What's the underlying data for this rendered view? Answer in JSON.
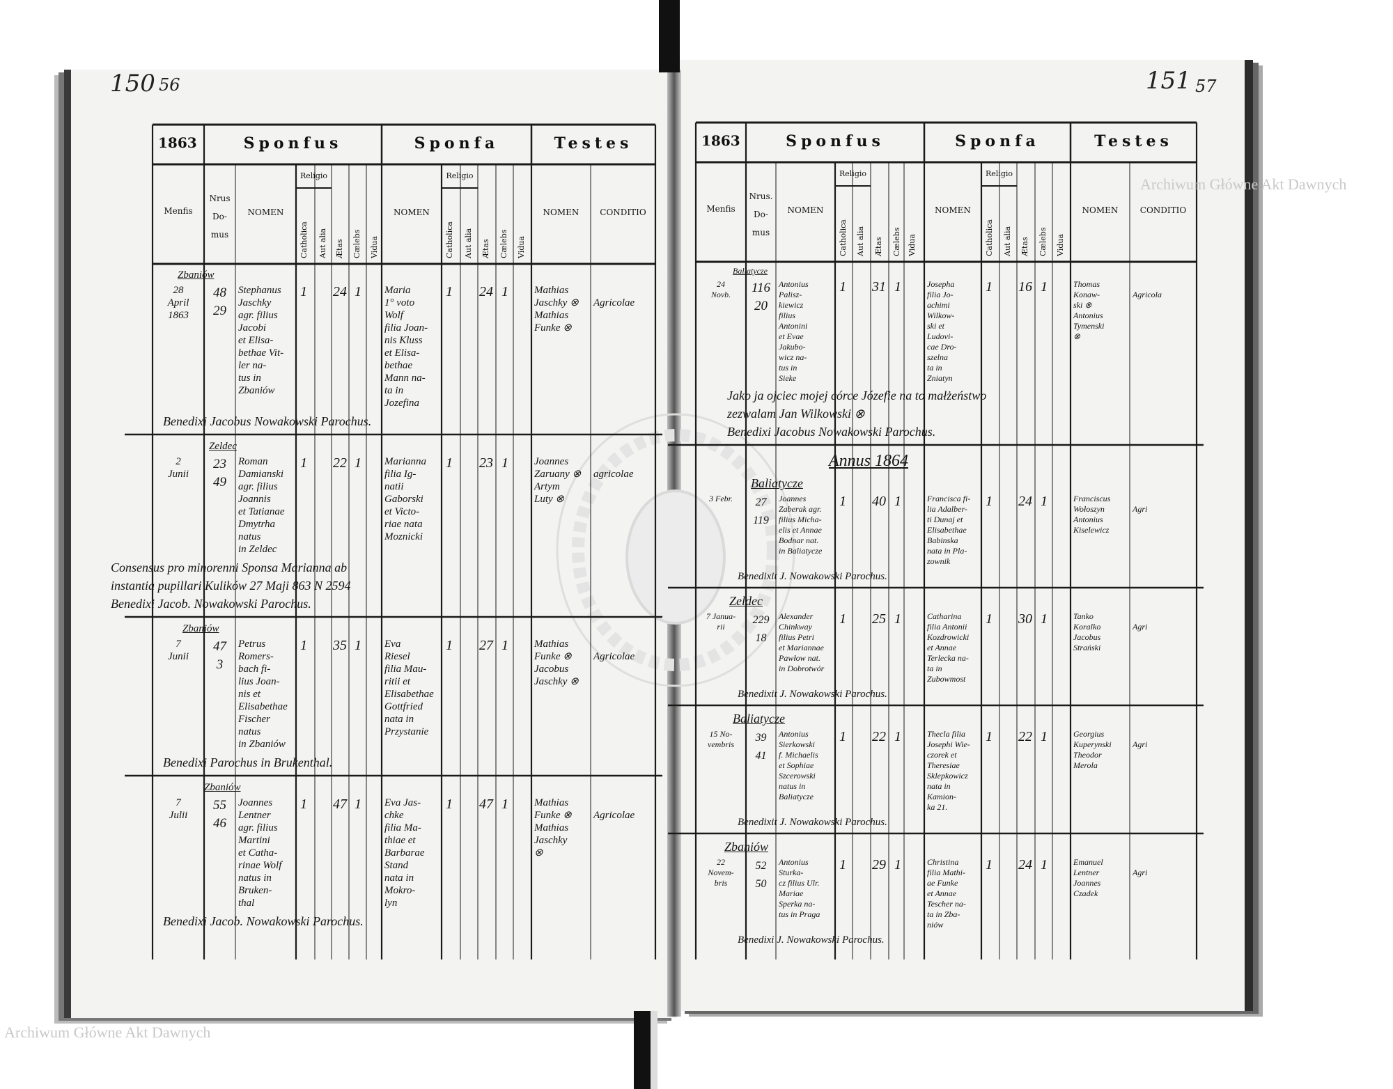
{
  "watermark": "Archiwum Główne Akt Dawnych",
  "stamp_text": "ARCHIWUM GŁÓWNE AKT DAWNYCH",
  "left_page": {
    "page_number": "150",
    "page_number_alt": "56",
    "header": {
      "year": "1863",
      "sponsus": "Sponfus",
      "sponsa": "Sponfa",
      "testes": "Testes",
      "mensis": "Menfis",
      "nrus_domus": "Nrus\nDo-\nmus",
      "nomen": "NOMEN",
      "religio": "Religio",
      "catholica": "Catholica",
      "aut_alia": "Aut alia",
      "aetas": "Ætas",
      "caelebs": "Cælebs",
      "vidua": "Vidua",
      "conditio": "CONDITIO"
    },
    "entries": [
      {
        "village": "Zbaniów",
        "date": "28\nApril\n1863",
        "domus": "48\n29",
        "sponsus": "Stephanus\nJaschky\nagr. filius\nJacobi\net Elisa-\nbethae Vit-\nler na-\ntus in\nZbaniów",
        "sponsus_religio": "1",
        "sponsus_aetas": "24",
        "sponsus_status": "1",
        "sponsa": "Maria\n1° voto\nWolf\nfilia Joan-\nnis Kluss\net Elisa-\nbethae\nMann na-\nta in\nJozefina",
        "sponsa_religio": "1",
        "sponsa_aetas": "24",
        "sponsa_status": "1",
        "testes": "Mathias\nJaschky ⊗\nMathias\nFunke ⊗",
        "conditio": "Agricolae",
        "signature": "Benedixi Jacobus Nowakowski Parochus."
      },
      {
        "village": "Zeldec",
        "date": "2\nJunii",
        "domus": "23\n49",
        "sponsus": "Roman\nDamianski\nagr. filius\nJoannis\net Tatianae\nDmytrha\nnatus\nin Zeldec",
        "sponsus_religio": "1",
        "sponsus_aetas": "22",
        "sponsus_status": "1",
        "sponsa": "Marianna\nfilia Ig-\nnatii\nGaborski\net Victo-\nriae nata\nMoznicki",
        "sponsa_religio": "1",
        "sponsa_aetas": "23",
        "sponsa_status": "1",
        "testes": "Joannes\nZaruany ⊗\nArtym\nLuty ⊗",
        "conditio": "agricolae",
        "signature": "Consensus pro minorenni Sponsa Marianna ab\ninstantia pupillari Kulików 27 Maji 863 N 2594\nBenedixi Jacob. Nowakowski Parochus."
      },
      {
        "village": "Zbaniów",
        "date": "7\nJunii",
        "domus": "47\n3",
        "sponsus": "Petrus\nRomers-\nbach fi-\nlius Joan-\nnis et\nElisabethae\nFischer\nnatus\nin Zbaniów",
        "sponsus_religio": "1",
        "sponsus_aetas": "35",
        "sponsus_status": "1",
        "sponsa": "Eva\nRiesel\nfilia Mau-\nritii et\nElisabethae\nGottfried\nnata in\nPrzystanie",
        "sponsa_religio": "1",
        "sponsa_aetas": "27",
        "sponsa_status": "1",
        "testes": "Mathias\nFunke ⊗\nJacobus\nJaschky ⊗",
        "conditio": "Agricolae",
        "signature": "Benedixi Parochus in Brukenthal."
      },
      {
        "village": "Zbaniów",
        "date": "7\nJulii",
        "domus": "55\n46",
        "sponsus": "Joannes\nLentner\nagr. filius\nMartini\net Catha-\nrinae Wolf\nnatus in\nBruken-\nthal",
        "sponsus_religio": "1",
        "sponsus_aetas": "47",
        "sponsus_status": "1",
        "sponsa": "Eva Jas-\nchke\nfilia Ma-\nthiae et\nBarbarae\nStand\nnata in\nMokro-\nlyn",
        "sponsa_religio": "1",
        "sponsa_aetas": "47",
        "sponsa_status": "1",
        "testes": "Mathias\nFunke ⊗\nMathias\nJaschky\n⊗",
        "conditio": "Agricolae",
        "signature": "Benedixi Jacob. Nowakowski Parochus."
      }
    ]
  },
  "right_page": {
    "page_number": "151",
    "page_number_alt": "57",
    "header": {
      "year": "1863",
      "sponsus": "Sponfus",
      "sponsa": "Sponfa",
      "testes": "Testes",
      "mensis": "Menfis",
      "nrus_domus": "Nrus.\nDo-\nmus",
      "nomen": "NOMEN",
      "religio": "Religio",
      "catholica": "Catholica",
      "aut_alia": "Aut alia",
      "aetas": "Ætas",
      "caelebs": "Cælebs",
      "vidua": "Vidua",
      "conditio": "CONDITIO"
    },
    "annus": "Annus 1864",
    "entries": [
      {
        "village": "Baliatycze",
        "date": "24\nNovb.",
        "domus": "116\n20",
        "sponsus": "Antonius\nPalisz-\nkiewicz\nfilius\nAntonini\net Evae\nJakubo-\nwicz na-\ntus in\nSieke",
        "sponsus_religio": "1",
        "sponsus_aetas": "31",
        "sponsus_status": "1",
        "sponsa": "Josepha\nfilia Jo-\nachimi\nWilkow-\nski et\nLudovi-\ncae Dro-\nszelna\nta in\nZniatyn",
        "sponsa_religio": "1",
        "sponsa_aetas": "16",
        "sponsa_status": "1",
        "testes": "Thomas\nKonaw-\nski ⊗\nAntonius\nTymenski\n⊗",
        "conditio": "Agricola",
        "signature": "Jako ja ojciec mojej córce Józefie na to małżeństwo\nzezwalam Jan Wilkowski ⊗\nBenedixi Jacobus Nowakowski Parochus."
      },
      {
        "village": "Baliatycze",
        "date": "3 Febr.",
        "domus": "27\n119",
        "sponsus": "Joannes\nZaberak agr.\nfilius Micha-\nelis et Annae\nBodnar nat.\nin Baliatycze",
        "sponsus_religio": "1",
        "sponsus_aetas": "40",
        "sponsus_status": "1",
        "sponsa": "Francisca fi-\nlia Adalber-\nti Dunaj et\nElisabethae\nBabinska\nnata in Pla-\nzownik",
        "sponsa_religio": "1",
        "sponsa_aetas": "24",
        "sponsa_status": "1",
        "testes": "Franciscus\nWołoszyn\nAntonius\nKiselewicz",
        "conditio": "Agri",
        "signature": "Benedixit J. Nowakowski Parochus."
      },
      {
        "village": "Zeldec",
        "date": "7 Janua-\nrii",
        "domus": "229\n18",
        "sponsus": "Alexander\nChinkway\nfilius Petri\net Mariannae\nPawłow nat.\nin Dobrotwór",
        "sponsus_religio": "1",
        "sponsus_aetas": "25",
        "sponsus_status": "1",
        "sponsa": "Catharina\nfilia Antonii\nKozdrowicki\net Annae\nTerlecka na-\nta in Zubowmost",
        "sponsa_religio": "1",
        "sponsa_aetas": "30",
        "sponsa_status": "1",
        "testes": "Tanko\nKoralko\nJacobus\nStrański",
        "conditio": "Agri",
        "signature": "Benedixit J. Nowakowski Parochus."
      },
      {
        "village": "Baliatycze",
        "date": "15 No-\nvembris",
        "domus": "39\n41",
        "sponsus": "Antonius\nSierkowski\nf. Michaelis\net Sophiae\nSzcerowski\nnatus in\nBaliatycze",
        "sponsus_religio": "1",
        "sponsus_aetas": "22",
        "sponsus_status": "1",
        "sponsa": "Thecla filia\nJosephi Wie-\nczorek et\nTheresiae\nSklepkowicz\nnata in Kamion-\nka 21.",
        "sponsa_religio": "1",
        "sponsa_aetas": "22",
        "sponsa_status": "1",
        "testes": "Georgius\nKuperynski\nTheodor\nMerola",
        "conditio": "Agri",
        "signature": "Benedixit J. Nowakowski Parochus."
      },
      {
        "village": "Zbaniów",
        "date": "22\nNovem-\nbris",
        "domus": "52\n50",
        "sponsus": "Antonius\nSturka-\ncz filius Ulr.\nMariae\nSperka na-\ntus in Praga",
        "sponsus_religio": "1",
        "sponsus_aetas": "29",
        "sponsus_status": "1",
        "sponsa": "Christina\nfilia Mathi-\nae Funke\net Annae\nTescher na-\nta in Zba-\nniów",
        "sponsa_religio": "1",
        "sponsa_aetas": "24",
        "sponsa_status": "1",
        "testes": "Emanuel\nLentner\nJoannes\nCzadek",
        "conditio": "Agri",
        "signature": "Benedixi J. Nowakowski Parochus."
      }
    ]
  }
}
